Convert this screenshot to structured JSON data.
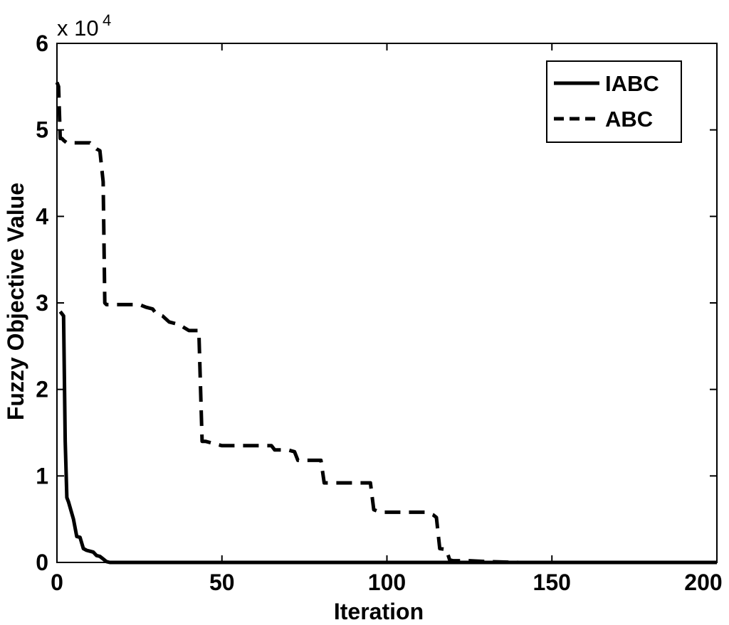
{
  "chart_data": {
    "type": "line",
    "title": "",
    "xlabel": "Iteration",
    "ylabel": "Fuzzy Objective Value",
    "xlim": [
      0,
      200
    ],
    "ylim": [
      0,
      60000
    ],
    "y_multiplier_label": "x 10",
    "y_multiplier_exponent": "4",
    "xticks": [
      0,
      50,
      100,
      150,
      200
    ],
    "xtick_labels": [
      "0",
      "50",
      "100",
      "150",
      "200"
    ],
    "yticks": [
      0,
      10000,
      20000,
      30000,
      40000,
      50000,
      60000
    ],
    "ytick_labels": [
      "0",
      "1",
      "2",
      "3",
      "4",
      "5",
      "6"
    ],
    "grid": false,
    "legend_position": "top-right",
    "series": [
      {
        "name": "IABC",
        "style": "solid",
        "color": "#000000",
        "x": [
          1,
          2,
          2.5,
          3,
          3.5,
          5,
          6,
          7,
          8,
          9,
          10,
          11,
          12,
          13,
          14,
          15,
          16,
          20,
          30,
          50,
          100,
          150,
          200
        ],
        "y": [
          29000,
          28500,
          14000,
          7500,
          7000,
          5000,
          3000,
          2900,
          1600,
          1400,
          1300,
          1200,
          800,
          700,
          400,
          100,
          0,
          0,
          0,
          0,
          0,
          0,
          0
        ]
      },
      {
        "name": "ABC",
        "style": "dashed",
        "color": "#000000",
        "x": [
          0,
          0.5,
          1,
          1.5,
          2,
          3,
          4,
          5,
          10,
          12,
          13,
          14,
          14.5,
          15,
          16,
          20,
          25,
          27,
          29,
          30,
          32,
          34,
          37,
          40,
          43,
          44,
          45,
          47,
          50,
          55,
          65,
          66,
          67,
          70,
          72,
          73,
          80,
          81,
          95,
          96,
          98,
          112,
          114,
          115,
          116,
          118,
          119,
          120,
          125,
          130,
          140,
          150,
          200
        ],
        "y": [
          55500,
          55000,
          49000,
          49000,
          48800,
          48500,
          48500,
          48500,
          48500,
          47800,
          47600,
          44000,
          30000,
          29800,
          29800,
          29800,
          29800,
          29500,
          29300,
          28800,
          28500,
          27800,
          27500,
          26800,
          26800,
          14000,
          14000,
          13800,
          13500,
          13500,
          13500,
          13000,
          13000,
          13000,
          12800,
          11800,
          11800,
          9200,
          9200,
          6100,
          5800,
          5800,
          5500,
          5200,
          1600,
          1500,
          300,
          200,
          200,
          100,
          0,
          0,
          0
        ]
      }
    ]
  }
}
